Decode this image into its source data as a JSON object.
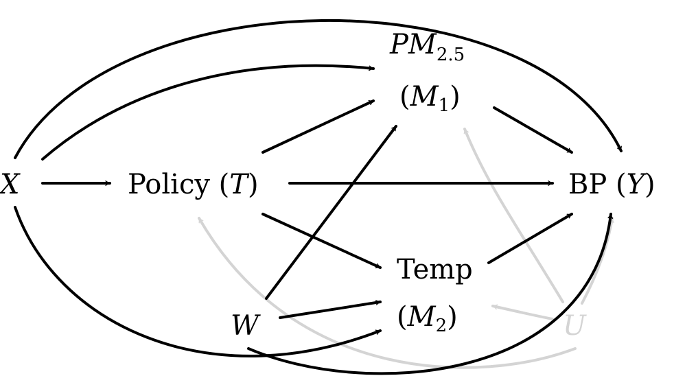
{
  "diagram": {
    "nodes": {
      "X": {
        "main": "X"
      },
      "T": {
        "prefix": "Policy (",
        "var": "T",
        "suffix": ")"
      },
      "M1": {
        "line1_var": "PM",
        "line1_sub": "2.5",
        "line2_open": "(",
        "line2_var": "M",
        "line2_sub": "1",
        "line2_close": ")"
      },
      "Y": {
        "prefix": "BP (",
        "var": "Y",
        "suffix": ")"
      },
      "M2": {
        "line1": "Temp",
        "line2_open": "(",
        "line2_var": "M",
        "line2_sub": "2",
        "line2_close": ")"
      },
      "W": {
        "main": "W"
      },
      "U": {
        "main": "U"
      }
    },
    "edges": [
      {
        "from": "X",
        "to": "T",
        "style": "solid"
      },
      {
        "from": "X",
        "to": "M1",
        "style": "solid"
      },
      {
        "from": "X",
        "to": "Y",
        "style": "solid"
      },
      {
        "from": "X",
        "to": "M2",
        "style": "solid"
      },
      {
        "from": "T",
        "to": "M1",
        "style": "solid"
      },
      {
        "from": "T",
        "to": "Y",
        "style": "solid"
      },
      {
        "from": "T",
        "to": "M2",
        "style": "solid"
      },
      {
        "from": "M1",
        "to": "Y",
        "style": "solid"
      },
      {
        "from": "M2",
        "to": "Y",
        "style": "solid"
      },
      {
        "from": "W",
        "to": "M1",
        "style": "solid"
      },
      {
        "from": "W",
        "to": "M2",
        "style": "solid"
      },
      {
        "from": "W",
        "to": "Y",
        "style": "solid"
      },
      {
        "from": "U",
        "to": "T",
        "style": "faded"
      },
      {
        "from": "U",
        "to": "M1",
        "style": "faded"
      },
      {
        "from": "U",
        "to": "M2",
        "style": "faded"
      },
      {
        "from": "U",
        "to": "Y",
        "style": "faded"
      }
    ],
    "colors": {
      "solid": "#000000",
      "faded": "#d4d4d4"
    }
  }
}
